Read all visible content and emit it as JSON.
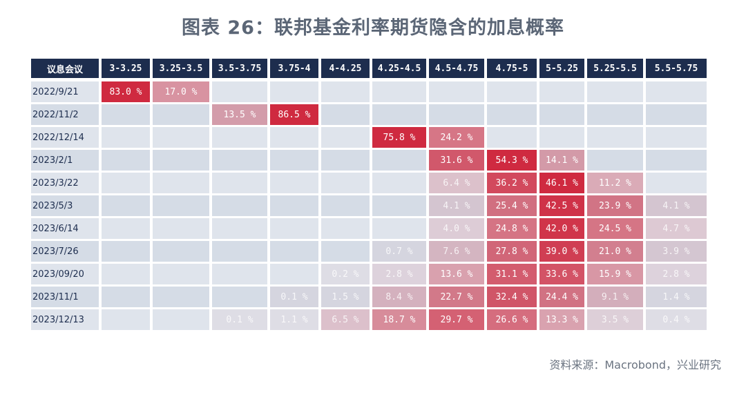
{
  "chart_data": {
    "type": "heatmap",
    "title": "图表 26：联邦基金利率期货隐含的加息概率",
    "row_header": "议息会议",
    "columns": [
      "3-3.25",
      "3.25-3.5",
      "3.5-3.75",
      "3.75-4",
      "4-4.25",
      "4.25-4.5",
      "4.5-4.75",
      "4.75-5",
      "5-5.25",
      "5.25-5.5",
      "5.5-5.75"
    ],
    "rows": [
      {
        "date": "2022/9/21",
        "values": [
          83.0,
          17.0,
          null,
          null,
          null,
          null,
          null,
          null,
          null,
          null,
          null
        ]
      },
      {
        "date": "2022/11/2",
        "values": [
          null,
          null,
          13.5,
          86.5,
          null,
          null,
          null,
          null,
          null,
          null,
          null
        ]
      },
      {
        "date": "2022/12/14",
        "values": [
          null,
          null,
          null,
          null,
          null,
          75.8,
          24.2,
          null,
          null,
          null,
          null
        ]
      },
      {
        "date": "2023/2/1",
        "values": [
          null,
          null,
          null,
          null,
          null,
          null,
          31.6,
          54.3,
          14.1,
          null,
          null
        ]
      },
      {
        "date": "2023/3/22",
        "values": [
          null,
          null,
          null,
          null,
          null,
          null,
          6.4,
          36.2,
          46.1,
          11.2,
          null
        ]
      },
      {
        "date": "2023/5/3",
        "values": [
          null,
          null,
          null,
          null,
          null,
          null,
          4.1,
          25.4,
          42.5,
          23.9,
          4.1
        ]
      },
      {
        "date": "2023/6/14",
        "values": [
          null,
          null,
          null,
          null,
          null,
          null,
          4.0,
          24.8,
          42.0,
          24.5,
          4.7
        ]
      },
      {
        "date": "2023/7/26",
        "values": [
          null,
          null,
          null,
          null,
          null,
          0.7,
          7.6,
          27.8,
          39.0,
          21.0,
          3.9
        ]
      },
      {
        "date": "2023/09/20",
        "values": [
          null,
          null,
          null,
          null,
          0.2,
          2.8,
          13.6,
          31.1,
          33.6,
          15.9,
          2.8
        ]
      },
      {
        "date": "2023/11/1",
        "values": [
          null,
          null,
          null,
          0.1,
          1.5,
          8.4,
          22.7,
          32.4,
          24.4,
          9.1,
          1.4
        ]
      },
      {
        "date": "2023/12/13",
        "values": [
          null,
          null,
          0.1,
          1.1,
          6.5,
          18.7,
          29.7,
          26.6,
          13.3,
          3.5,
          0.4
        ]
      }
    ],
    "unit": "%",
    "colors": {
      "header": "#1d2d4e",
      "high": "#cf2a40",
      "empty": "#dfe4ec",
      "empty_alt": "#d5dce6"
    }
  },
  "source": "资料来源：Macrobond，兴业研究"
}
